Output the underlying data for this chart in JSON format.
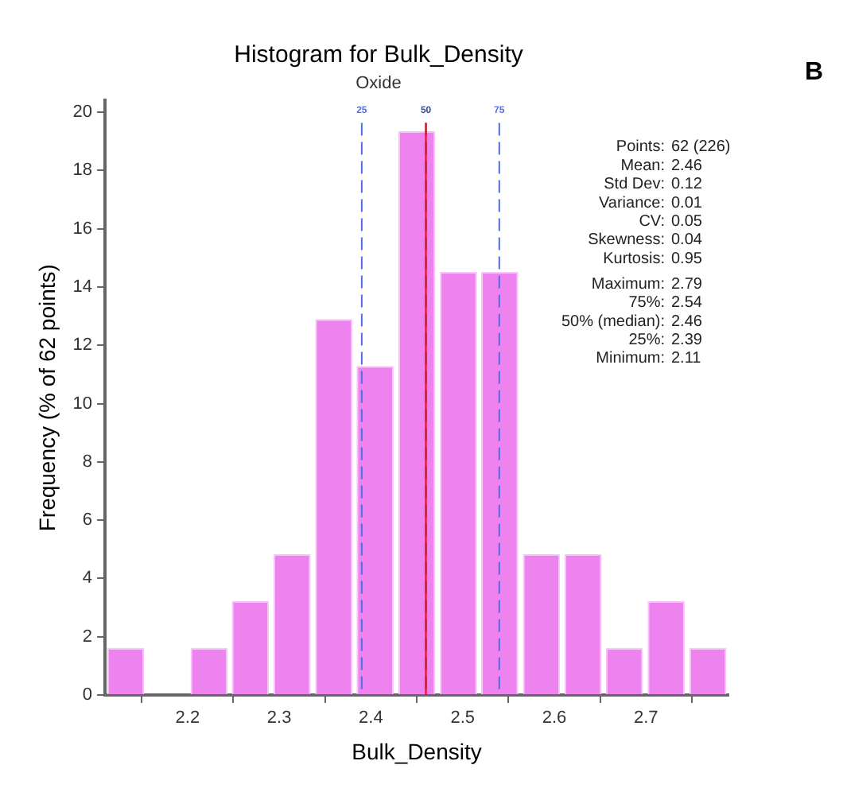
{
  "chart_data": {
    "type": "histogram",
    "title": "Histogram for Bulk_Density",
    "subtitle": "Oxide",
    "xlabel": "Bulk_Density",
    "ylabel": "Frequency (% of 62 points)",
    "bins": [
      2.11,
      2.155,
      2.201,
      2.246,
      2.291,
      2.337,
      2.382,
      2.427,
      2.473,
      2.518,
      2.563,
      2.609,
      2.654,
      2.699,
      2.745,
      2.79
    ],
    "values": [
      1.61,
      0,
      1.61,
      3.23,
      4.84,
      12.9,
      11.29,
      19.35,
      14.52,
      14.52,
      4.84,
      4.84,
      1.61,
      3.23,
      1.61
    ],
    "color": "#ee82ee",
    "xlim": [
      2.11,
      2.79
    ],
    "xticks": [
      2.2,
      2.3,
      2.4,
      2.5,
      2.6,
      2.7
    ],
    "ylim": [
      0,
      20.4
    ],
    "yticks": [
      0,
      2,
      4,
      6,
      8,
      10,
      12,
      14,
      16,
      18,
      20
    ],
    "grid": false,
    "legend": false,
    "ref_lines": [
      {
        "axis": "x",
        "value": 2.39,
        "color": "#4d6ee8",
        "line_style": "dashed"
      },
      {
        "axis": "x",
        "value": 2.46,
        "color": "#3a4a8c",
        "line_style": "dashed"
      },
      {
        "axis": "x",
        "value": 2.46,
        "color": "#ff0000",
        "line_style": "solid"
      },
      {
        "axis": "x",
        "value": 2.54,
        "color": "#4d6ee8",
        "line_style": "dashed"
      }
    ],
    "annotations": [
      "25",
      "50",
      "75",
      "Points: 62 (226)",
      "Mean: 2.46",
      "Std Dev: 0.12",
      "Variance: 0.01",
      "CV: 0.05",
      "Skewness: 0.04",
      "Kurtosis: 0.95",
      "Maximum: 2.79",
      "75%: 2.54",
      "50% (median): 2.46",
      "25%: 2.39",
      "Minimum: 2.11",
      "B"
    ]
  }
}
